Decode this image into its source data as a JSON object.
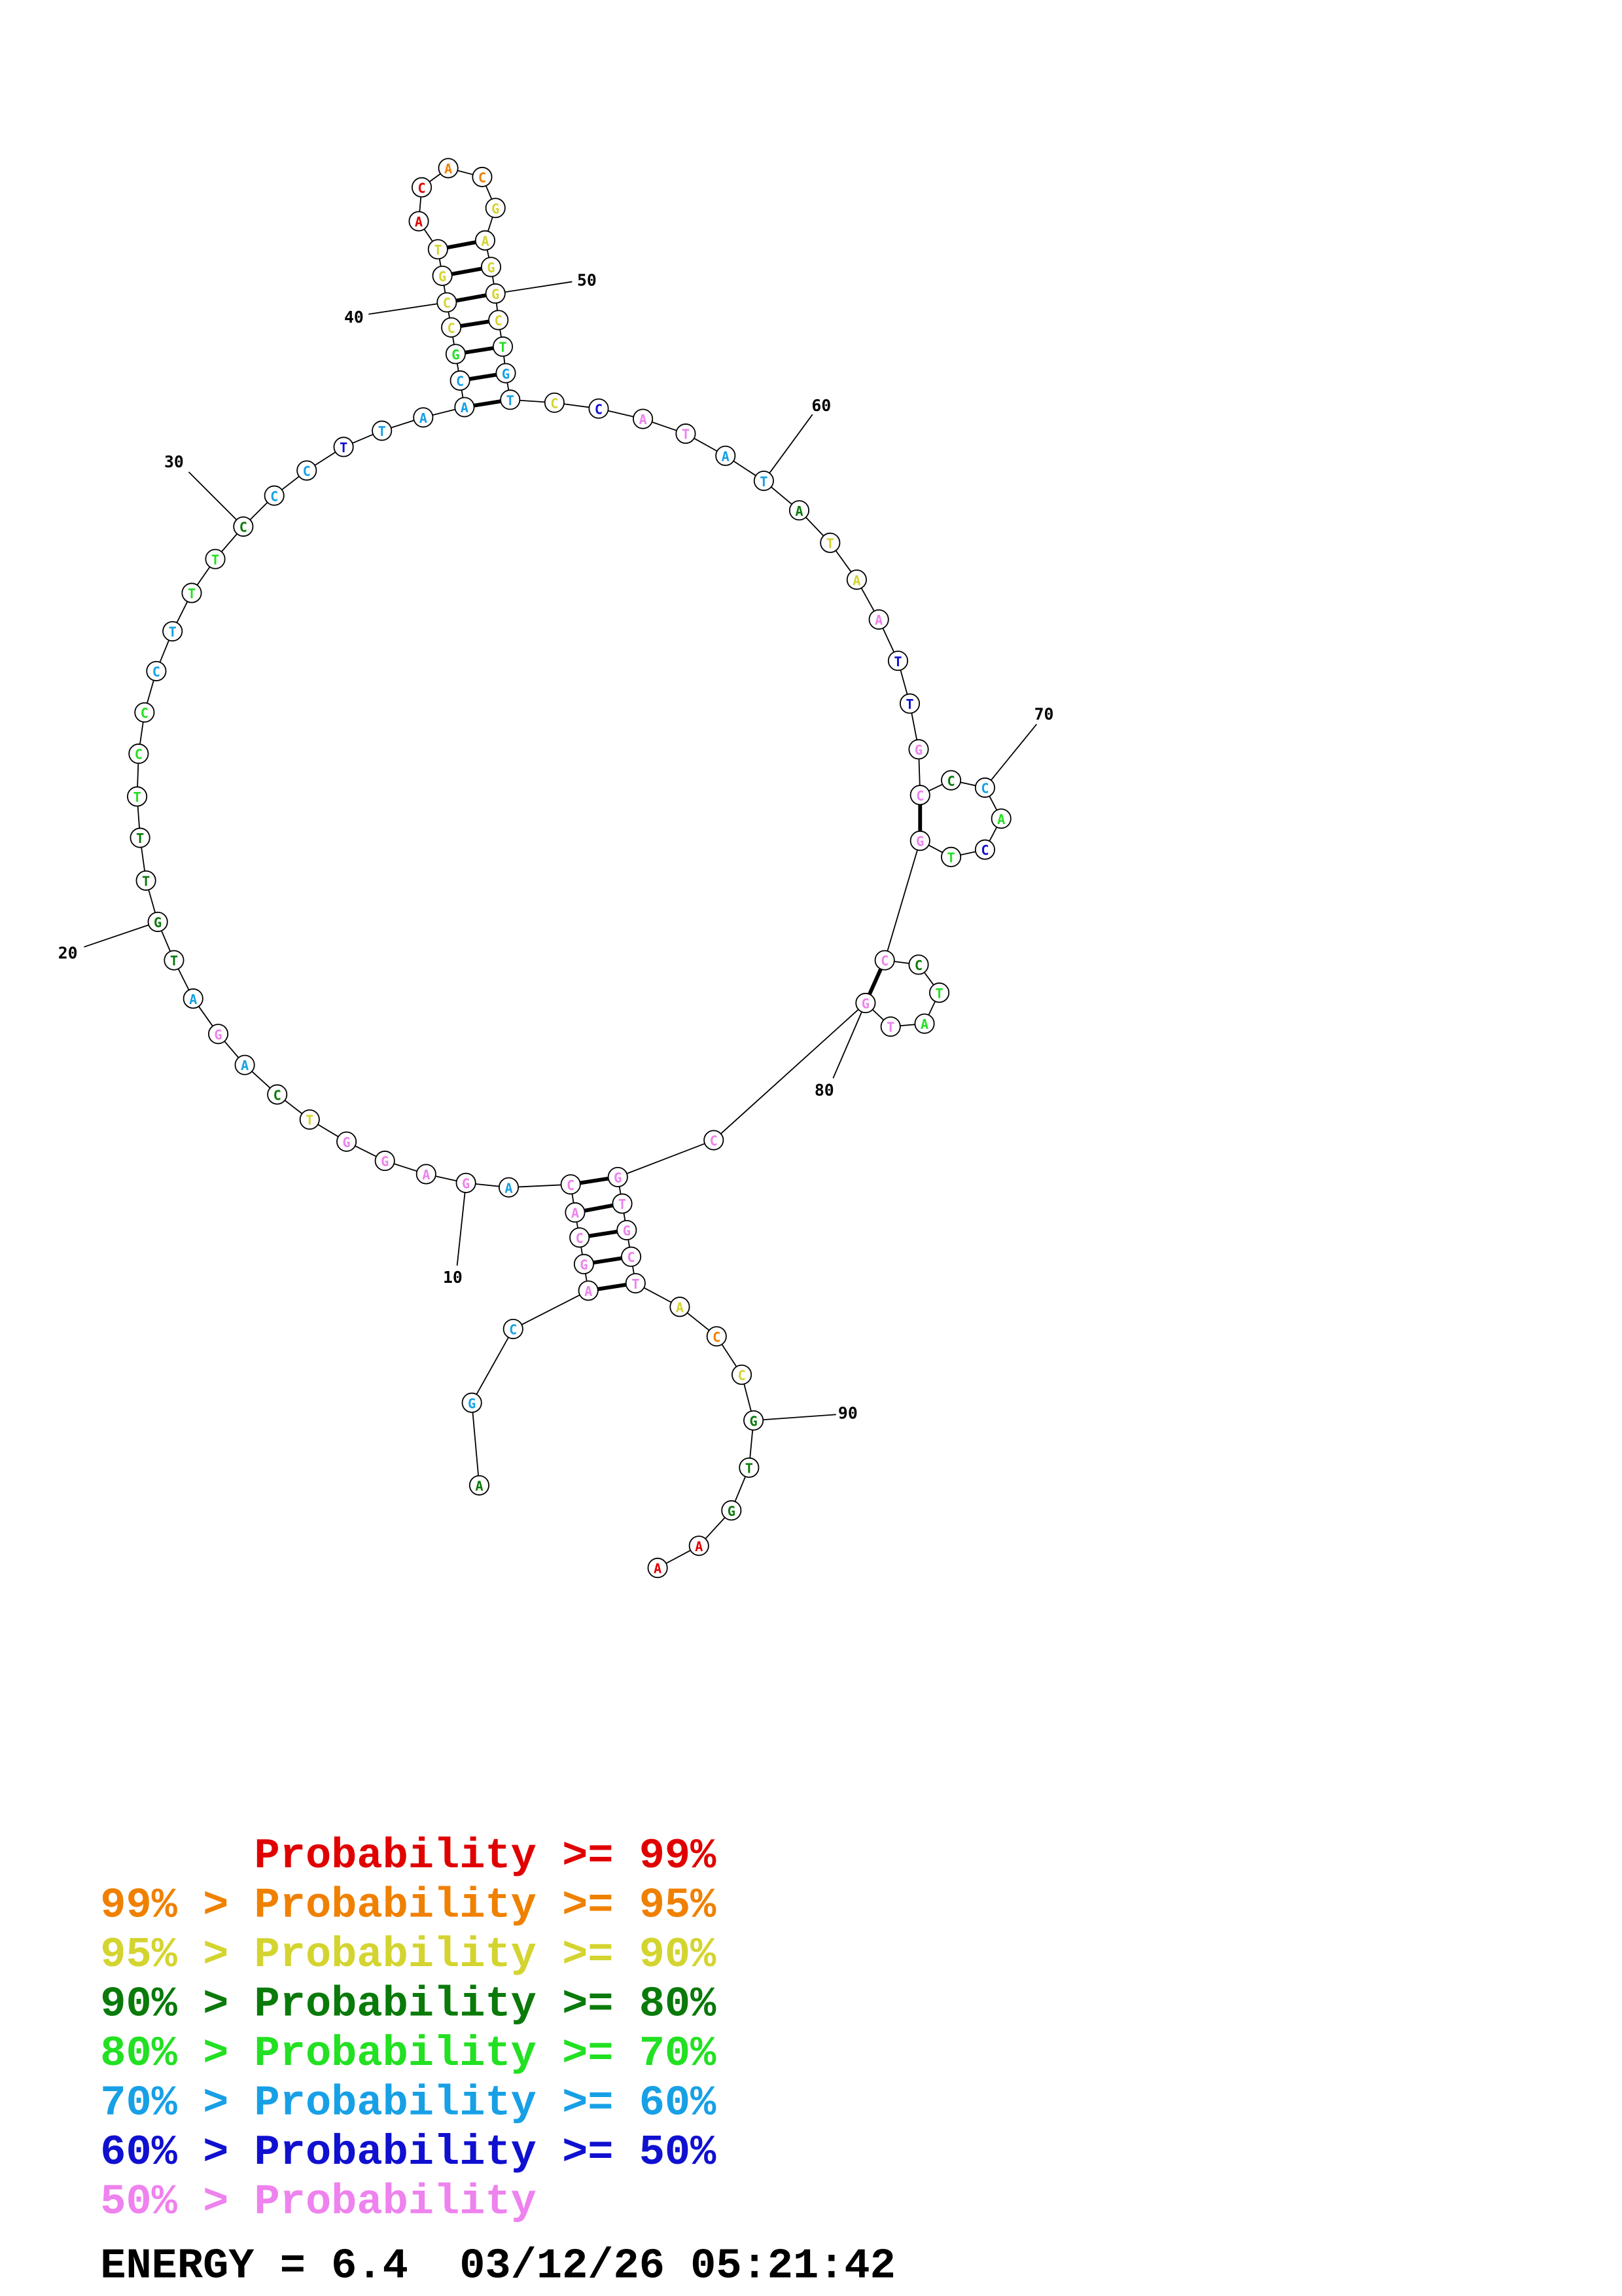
{
  "nodes": [
    {
      "label": "A",
      "color": "#0a7a0a"
    },
    {
      "label": "G",
      "color": "#17a0e6"
    },
    {
      "label": "C",
      "color": "#17a0e6"
    },
    {
      "label": "A",
      "color": "#ee82ee"
    },
    {
      "label": "G",
      "color": "#ee82ee"
    },
    {
      "label": "C",
      "color": "#ee82ee"
    },
    {
      "label": "A",
      "color": "#ee82ee"
    },
    {
      "label": "C",
      "color": "#ee82ee"
    },
    {
      "label": "A",
      "color": "#17a0e6"
    },
    {
      "label": "G",
      "color": "#ee82ee"
    },
    {
      "label": "A",
      "color": "#ee82ee"
    },
    {
      "label": "G",
      "color": "#ee82ee"
    },
    {
      "label": "G",
      "color": "#ee82ee"
    },
    {
      "label": "T",
      "color": "#d4d430"
    },
    {
      "label": "C",
      "color": "#0a7a0a"
    },
    {
      "label": "A",
      "color": "#17a0e6"
    },
    {
      "label": "G",
      "color": "#ee82ee"
    },
    {
      "label": "A",
      "color": "#17a0e6"
    },
    {
      "label": "T",
      "color": "#0a7a0a"
    },
    {
      "label": "G",
      "color": "#0a7a0a"
    },
    {
      "label": "T",
      "color": "#0a7a0a"
    },
    {
      "label": "T",
      "color": "#0a7a0a"
    },
    {
      "label": "T",
      "color": "#22e022"
    },
    {
      "label": "C",
      "color": "#22e022"
    },
    {
      "label": "C",
      "color": "#22e022"
    },
    {
      "label": "C",
      "color": "#17a0e6"
    },
    {
      "label": "T",
      "color": "#17a0e6"
    },
    {
      "label": "T",
      "color": "#22e022"
    },
    {
      "label": "T",
      "color": "#22e022"
    },
    {
      "label": "C",
      "color": "#0a7a0a"
    },
    {
      "label": "C",
      "color": "#17a0e6"
    },
    {
      "label": "C",
      "color": "#17a0e6"
    },
    {
      "label": "T",
      "color": "#1010d0"
    },
    {
      "label": "T",
      "color": "#17a0e6"
    },
    {
      "label": "A",
      "color": "#17a0e6"
    },
    {
      "label": "A",
      "color": "#17a0e6"
    },
    {
      "label": "C",
      "color": "#17a0e6"
    },
    {
      "label": "G",
      "color": "#22e022"
    },
    {
      "label": "C",
      "color": "#d4d430"
    },
    {
      "label": "C",
      "color": "#d4d430"
    },
    {
      "label": "G",
      "color": "#d4d430"
    },
    {
      "label": "T",
      "color": "#d4d430"
    },
    {
      "label": "A",
      "color": "#e00000"
    },
    {
      "label": "C",
      "color": "#e00000"
    },
    {
      "label": "A",
      "color": "#f08000"
    },
    {
      "label": "C",
      "color": "#f08000"
    },
    {
      "label": "G",
      "color": "#d4d430"
    },
    {
      "label": "A",
      "color": "#d4d430"
    },
    {
      "label": "G",
      "color": "#d4d430"
    },
    {
      "label": "G",
      "color": "#d4d430"
    },
    {
      "label": "C",
      "color": "#d4d430"
    },
    {
      "label": "T",
      "color": "#22e022"
    },
    {
      "label": "G",
      "color": "#17a0e6"
    },
    {
      "label": "T",
      "color": "#17a0e6"
    },
    {
      "label": "C",
      "color": "#d4d430"
    },
    {
      "label": "C",
      "color": "#1010d0"
    },
    {
      "label": "A",
      "color": "#ee82ee"
    },
    {
      "label": "T",
      "color": "#ee82ee"
    },
    {
      "label": "A",
      "color": "#17a0e6"
    },
    {
      "label": "T",
      "color": "#17a0e6"
    },
    {
      "label": "A",
      "color": "#0a7a0a"
    },
    {
      "label": "T",
      "color": "#d4d430"
    },
    {
      "label": "A",
      "color": "#d4d430"
    },
    {
      "label": "A",
      "color": "#ee82ee"
    },
    {
      "label": "T",
      "color": "#1010d0"
    },
    {
      "label": "T",
      "color": "#1010d0"
    },
    {
      "label": "G",
      "color": "#ee82ee"
    },
    {
      "label": "C",
      "color": "#ee82ee"
    },
    {
      "label": "C",
      "color": "#0a7a0a"
    },
    {
      "label": "C",
      "color": "#17a0e6"
    },
    {
      "label": "A",
      "color": "#22e022"
    },
    {
      "label": "C",
      "color": "#1010d0"
    },
    {
      "label": "T",
      "color": "#22e022"
    },
    {
      "label": "G",
      "color": "#ee82ee"
    },
    {
      "label": "C",
      "color": "#ee82ee"
    },
    {
      "label": "C",
      "color": "#0a7a0a"
    },
    {
      "label": "T",
      "color": "#22e022"
    },
    {
      "label": "A",
      "color": "#22e022"
    },
    {
      "label": "T",
      "color": "#ee82ee"
    },
    {
      "label": "G",
      "color": "#ee82ee"
    },
    {
      "label": "C",
      "color": "#ee82ee"
    },
    {
      "label": "G",
      "color": "#ee82ee"
    },
    {
      "label": "T",
      "color": "#ee82ee"
    },
    {
      "label": "G",
      "color": "#ee82ee"
    },
    {
      "label": "C",
      "color": "#ee82ee"
    },
    {
      "label": "T",
      "color": "#ee82ee"
    },
    {
      "label": "A",
      "color": "#d4d430"
    },
    {
      "label": "C",
      "color": "#f08000"
    },
    {
      "label": "C",
      "color": "#d4d430"
    },
    {
      "label": "G",
      "color": "#0a7a0a"
    },
    {
      "label": "T",
      "color": "#0a7a0a"
    },
    {
      "label": "G",
      "color": "#0a7a0a"
    },
    {
      "label": "A",
      "color": "#e00000"
    },
    {
      "label": "A",
      "color": "#e00000"
    }
  ],
  "numbers": [
    "10",
    "20",
    "30",
    "40",
    "50",
    "60",
    "70",
    "80",
    "90"
  ],
  "legend": [
    {
      "text": "      Probability >= 99%",
      "color": "#e00000"
    },
    {
      "text": "99% > Probability >= 95%",
      "color": "#f08000"
    },
    {
      "text": "95% > Probability >= 90%",
      "color": "#d4d430"
    },
    {
      "text": "90% > Probability >= 80%",
      "color": "#0a7a0a"
    },
    {
      "text": "80% > Probability >= 70%",
      "color": "#22e022"
    },
    {
      "text": "70% > Probability >= 60%",
      "color": "#17a0e6"
    },
    {
      "text": "60% > Probability >= 50%",
      "color": "#1010d0"
    },
    {
      "text": "50% > Probability",
      "color": "#ee82ee"
    }
  ],
  "energy": "ENERGY = 6.4  03/12/26 05:21:42"
}
